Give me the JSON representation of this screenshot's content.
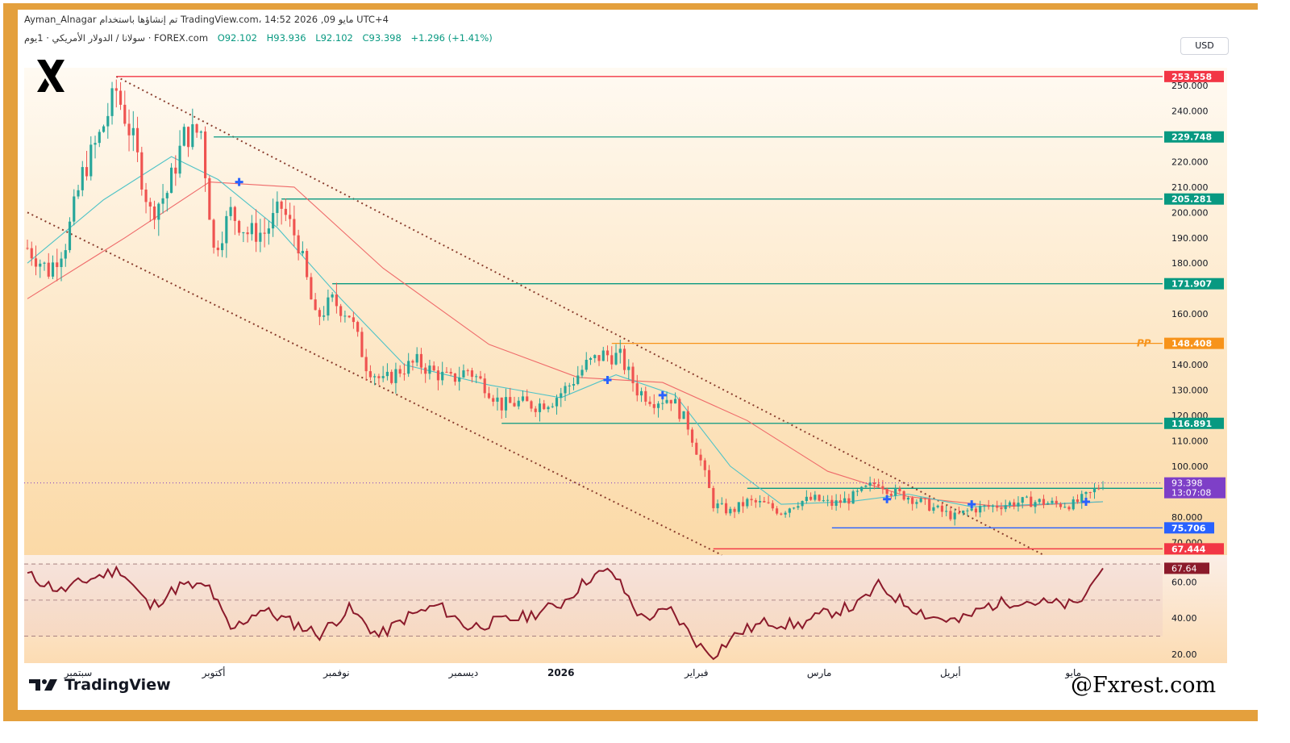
{
  "header": {
    "top_line": "Ayman_Alnagar تم إنشاؤها باستخدام TradingView.com، 14:52 2026 ,09 مايو UTC+4",
    "symbol_line": "سولانا / الدولار الأمريكي · 1يوم · FOREX.com",
    "open": "O92.102",
    "high": "H93.936",
    "low": "L92.102",
    "close": "C93.398",
    "change": "+1.296 (+1.41%)"
  },
  "currency": "USD",
  "brand": "TradingView",
  "watermark": "@Fxrest.com",
  "colors": {
    "frame": "#e4a03d",
    "bull": "#26a69a",
    "bear": "#ef5350",
    "support": "#089981",
    "resistance": "#f23645",
    "pivot": "#f7931a",
    "blue_level": "#2962ff",
    "price_tag": "#7e3fc7",
    "rsi": "#8b1a2b",
    "sma_fast": "#4fc3c7",
    "sma_slow": "#ef6a6a"
  },
  "chart_data": {
    "type": "candlestick",
    "symbol": "SOL/USD",
    "timeframe": "1D",
    "ylim": [
      65,
      257
    ],
    "y_ticks": [
      "250.000",
      "240.000",
      "220.000",
      "210.000",
      "200.000",
      "190.000",
      "180.000",
      "160.000",
      "140.000",
      "130.000",
      "120.000",
      "110.000",
      "100.000",
      "80.000",
      "70.000"
    ],
    "x_labels": [
      "سبتمبر",
      "أكتوبر",
      "نوفمبر",
      "ديسمبر",
      "2026",
      "فبراير",
      "مارس",
      "أبريل",
      "مايو"
    ],
    "levels": [
      {
        "label": "253.558",
        "value": 253.558,
        "kind": "resistance"
      },
      {
        "label": "229.748",
        "value": 229.748,
        "kind": "support"
      },
      {
        "label": "205.281",
        "value": 205.281,
        "kind": "support"
      },
      {
        "label": "171.907",
        "value": 171.907,
        "kind": "support"
      },
      {
        "label": "148.408",
        "value": 148.408,
        "kind": "pivot",
        "tag": "PP"
      },
      {
        "label": "116.891",
        "value": 116.891,
        "kind": "support"
      },
      {
        "label": "91.281",
        "value": 91.281,
        "kind": "support"
      },
      {
        "label": "75.706",
        "value": 75.706,
        "kind": "blue"
      },
      {
        "label": "67.444",
        "value": 67.444,
        "kind": "resistance"
      }
    ],
    "last_price": {
      "value": "93.398",
      "countdown": "13:07:08"
    },
    "close_path": [
      [
        "2025-08-28",
        186
      ],
      [
        "2025-09-02",
        177
      ],
      [
        "2025-09-06",
        188
      ],
      [
        "2025-09-10",
        215
      ],
      [
        "2025-09-14",
        230
      ],
      [
        "2025-09-18",
        248
      ],
      [
        "2025-09-22",
        228
      ],
      [
        "2025-09-26",
        200
      ],
      [
        "2025-09-30",
        208
      ],
      [
        "2025-10-04",
        230
      ],
      [
        "2025-10-08",
        232
      ],
      [
        "2025-10-11",
        185
      ],
      [
        "2025-10-15",
        200
      ],
      [
        "2025-10-19",
        192
      ],
      [
        "2025-10-23",
        192
      ],
      [
        "2025-10-27",
        202
      ],
      [
        "2025-10-31",
        188
      ],
      [
        "2025-11-04",
        158
      ],
      [
        "2025-11-08",
        165
      ],
      [
        "2025-11-12",
        160
      ],
      [
        "2025-11-16",
        140
      ],
      [
        "2025-11-20",
        133
      ],
      [
        "2025-11-24",
        138
      ],
      [
        "2025-11-28",
        141
      ],
      [
        "2025-12-02",
        137
      ],
      [
        "2025-12-06",
        134
      ],
      [
        "2025-12-10",
        138
      ],
      [
        "2025-12-14",
        132
      ],
      [
        "2025-12-18",
        124
      ],
      [
        "2025-12-22",
        125
      ],
      [
        "2025-12-26",
        124
      ],
      [
        "2025-12-30",
        126
      ],
      [
        "2026-01-03",
        132
      ],
      [
        "2026-01-07",
        140
      ],
      [
        "2026-01-11",
        144
      ],
      [
        "2026-01-15",
        143
      ],
      [
        "2026-01-19",
        130
      ],
      [
        "2026-01-23",
        126
      ],
      [
        "2026-01-27",
        127
      ],
      [
        "2026-01-31",
        116
      ],
      [
        "2026-02-03",
        102
      ],
      [
        "2026-02-06",
        85
      ],
      [
        "2026-02-10",
        82
      ],
      [
        "2026-02-14",
        86
      ],
      [
        "2026-02-18",
        85
      ],
      [
        "2026-02-22",
        82
      ],
      [
        "2026-02-26",
        86
      ],
      [
        "2026-03-02",
        87
      ],
      [
        "2026-03-06",
        85
      ],
      [
        "2026-03-10",
        87
      ],
      [
        "2026-03-14",
        91
      ],
      [
        "2026-03-17",
        94
      ],
      [
        "2026-03-20",
        90
      ],
      [
        "2026-03-24",
        88
      ],
      [
        "2026-03-28",
        85
      ],
      [
        "2026-04-01",
        82
      ],
      [
        "2026-04-04",
        80
      ],
      [
        "2026-04-08",
        83
      ],
      [
        "2026-04-12",
        84
      ],
      [
        "2026-04-16",
        85
      ],
      [
        "2026-04-20",
        86
      ],
      [
        "2026-04-24",
        86
      ],
      [
        "2026-04-28",
        85
      ],
      [
        "2026-05-02",
        85
      ],
      [
        "2026-05-06",
        89
      ],
      [
        "2026-05-09",
        93.398
      ]
    ],
    "trend_channel": {
      "upper": [
        [
          "2025-09-18",
          253.558
        ],
        [
          "2026-04-25",
          65
        ]
      ],
      "lower": [
        [
          "2025-08-28",
          200
        ],
        [
          "2026-02-08",
          65
        ]
      ]
    },
    "rsi": {
      "last": "67.64",
      "ylim": [
        15,
        75
      ],
      "y_ticks": [
        "60.00",
        "40.00",
        "20.00"
      ],
      "bands": [
        70,
        50,
        30
      ],
      "path": [
        [
          "2025-08-28",
          64
        ],
        [
          "2025-09-05",
          55
        ],
        [
          "2025-09-12",
          62
        ],
        [
          "2025-09-19",
          67
        ],
        [
          "2025-09-26",
          46
        ],
        [
          "2025-10-03",
          58
        ],
        [
          "2025-10-10",
          57
        ],
        [
          "2025-10-15",
          33
        ],
        [
          "2025-10-22",
          45
        ],
        [
          "2025-10-29",
          38
        ],
        [
          "2025-11-05",
          31
        ],
        [
          "2025-11-12",
          45
        ],
        [
          "2025-11-19",
          30
        ],
        [
          "2025-11-26",
          41
        ],
        [
          "2025-12-03",
          47
        ],
        [
          "2025-12-10",
          35
        ],
        [
          "2025-12-17",
          38
        ],
        [
          "2025-12-24",
          41
        ],
        [
          "2026-01-01",
          48
        ],
        [
          "2026-01-08",
          63
        ],
        [
          "2026-01-13",
          66
        ],
        [
          "2026-01-20",
          40
        ],
        [
          "2026-01-27",
          44
        ],
        [
          "2026-02-03",
          24
        ],
        [
          "2026-02-06",
          20
        ],
        [
          "2026-02-12",
          32
        ],
        [
          "2026-02-19",
          38
        ],
        [
          "2026-02-26",
          36
        ],
        [
          "2026-03-05",
          43
        ],
        [
          "2026-03-12",
          47
        ],
        [
          "2026-03-17",
          58
        ],
        [
          "2026-03-22",
          50
        ],
        [
          "2026-03-29",
          41
        ],
        [
          "2026-04-05",
          38
        ],
        [
          "2026-04-12",
          47
        ],
        [
          "2026-04-19",
          50
        ],
        [
          "2026-04-26",
          48
        ],
        [
          "2026-05-03",
          47
        ],
        [
          "2026-05-09",
          67.64
        ]
      ]
    },
    "sma_fast": [
      [
        "2025-08-28",
        180
      ],
      [
        "2025-09-15",
        205
      ],
      [
        "2025-10-01",
        222
      ],
      [
        "2025-10-12",
        213
      ],
      [
        "2025-10-26",
        194
      ],
      [
        "2025-11-10",
        166
      ],
      [
        "2025-11-25",
        140
      ],
      [
        "2025-12-15",
        132
      ],
      [
        "2026-01-01",
        127
      ],
      [
        "2026-01-14",
        136
      ],
      [
        "2026-01-28",
        128
      ],
      [
        "2026-02-10",
        100
      ],
      [
        "2026-02-22",
        85
      ],
      [
        "2026-03-10",
        86
      ],
      [
        "2026-03-24",
        89
      ],
      [
        "2026-04-08",
        84
      ],
      [
        "2026-04-24",
        85
      ],
      [
        "2026-05-09",
        86
      ]
    ],
    "sma_slow": [
      [
        "2025-08-28",
        166
      ],
      [
        "2025-09-20",
        190
      ],
      [
        "2025-10-10",
        212
      ],
      [
        "2025-10-30",
        210
      ],
      [
        "2025-11-20",
        178
      ],
      [
        "2025-12-15",
        148
      ],
      [
        "2026-01-05",
        135
      ],
      [
        "2026-01-25",
        133
      ],
      [
        "2026-02-14",
        118
      ],
      [
        "2026-03-05",
        98
      ],
      [
        "2026-03-24",
        88
      ],
      [
        "2026-04-15",
        84
      ],
      [
        "2026-05-09",
        86
      ]
    ],
    "markers": [
      [
        "2025-10-17",
        212
      ],
      [
        "2026-01-12",
        134
      ],
      [
        "2026-01-25",
        128
      ],
      [
        "2026-03-19",
        87
      ],
      [
        "2026-04-08",
        85
      ],
      [
        "2026-05-05",
        86
      ]
    ]
  }
}
